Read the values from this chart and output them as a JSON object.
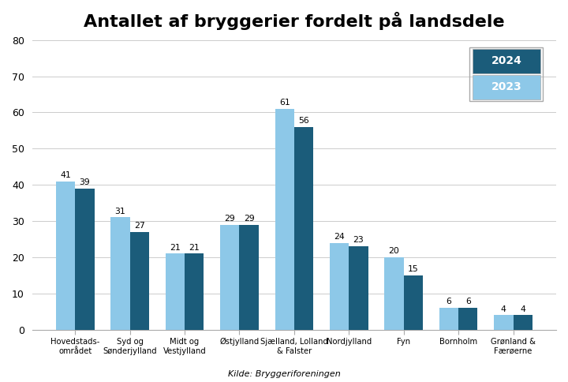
{
  "title": "Antallet af bryggerier fordelt på landsdele",
  "categories": [
    "Hovedstads-\nområdet",
    "Syd og\nSønderjylland",
    "Midt og\nVestjylland",
    "Østjylland",
    "Sjælland, Lolland\n& Falster",
    "Nordjylland",
    "Fyn",
    "Bornholm",
    "Grønland &\nFærøerne"
  ],
  "values_2023": [
    41,
    31,
    21,
    29,
    61,
    24,
    20,
    6,
    4
  ],
  "values_2024": [
    39,
    27,
    21,
    29,
    56,
    23,
    15,
    6,
    4
  ],
  "color_2023": "#8DC8E8",
  "color_2024": "#1B5C7A",
  "legend_2024_label": "2024",
  "legend_2023_label": "2023",
  "legend_text_color": "white",
  "ylim": [
    0,
    80
  ],
  "yticks": [
    0,
    10,
    20,
    30,
    40,
    50,
    60,
    70,
    80
  ],
  "source": "Kilde: Bryggeriforeningen",
  "bar_width": 0.35,
  "title_fontsize": 16,
  "label_fontsize": 7.8,
  "xtick_fontsize": 7.2
}
